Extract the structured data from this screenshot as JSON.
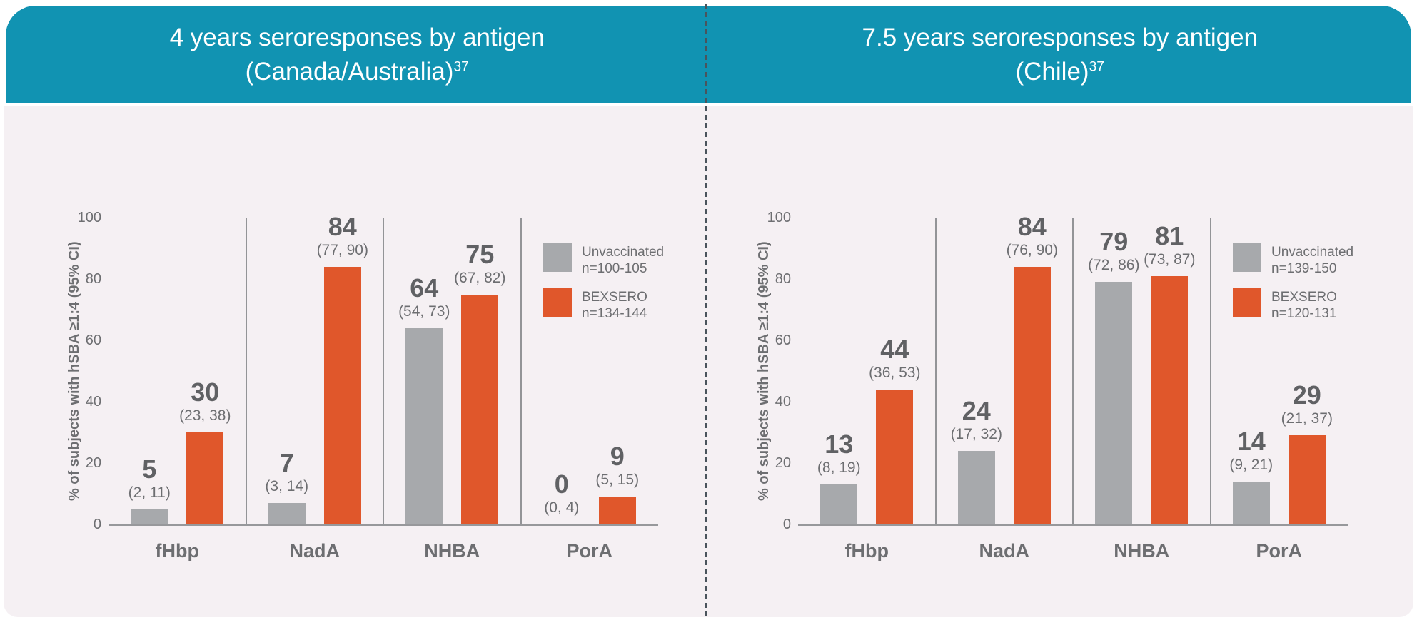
{
  "page": {
    "background": "#FFFFFF",
    "panel_background": "#F5F0F3",
    "header_background": "#1193B2",
    "divider_color": "#4A545C",
    "axis_color": "#97989B",
    "text_color": "#6D6E71"
  },
  "chart_data": [
    {
      "type": "bar",
      "title_line1": "4 years seroresponses by antigen",
      "title_line2": "(Canada/Australia)",
      "title_sup": "37",
      "ylabel": "% of subjects with hSBA ≥1:4 (95% CI)",
      "ylim": [
        0,
        100
      ],
      "yticks": [
        100,
        80,
        60,
        40,
        20,
        0
      ],
      "grid": "off",
      "legend_position": "top-right",
      "categories": [
        "fHbp",
        "NadA",
        "NHBA",
        "PorA"
      ],
      "series": [
        {
          "name": "Unvaccinated",
          "n_label": "n=100-105",
          "color": "#A7A9AC",
          "values": [
            5,
            7,
            64,
            0
          ],
          "ci_labels": [
            "(2, 11)",
            "(3, 14)",
            "(54, 73)",
            "(0, 4)"
          ]
        },
        {
          "name": "BEXSERO",
          "n_label": "n=134-144",
          "color": "#E0572B",
          "values": [
            30,
            84,
            75,
            9
          ],
          "ci_labels": [
            "(23, 38)",
            "(77, 90)",
            "(67, 82)",
            "(5, 15)"
          ]
        }
      ]
    },
    {
      "type": "bar",
      "title_line1": "7.5 years seroresponses by antigen",
      "title_line2": "(Chile)",
      "title_sup": "37",
      "ylabel": "% of subjects with hSBA ≥1:4 (95% CI)",
      "ylim": [
        0,
        100
      ],
      "yticks": [
        100,
        80,
        60,
        40,
        20,
        0
      ],
      "grid": "off",
      "legend_position": "top-right",
      "categories": [
        "fHbp",
        "NadA",
        "NHBA",
        "PorA"
      ],
      "series": [
        {
          "name": "Unvaccinated",
          "n_label": "n=139-150",
          "color": "#A7A9AC",
          "values": [
            13,
            24,
            79,
            14
          ],
          "ci_labels": [
            "(8, 19)",
            "(17, 32)",
            "(72, 86)",
            "(9, 21)"
          ]
        },
        {
          "name": "BEXSERO",
          "n_label": "n=120-131",
          "color": "#E0572B",
          "values": [
            44,
            84,
            81,
            29
          ],
          "ci_labels": [
            "(36, 53)",
            "(76, 90)",
            "(73, 87)",
            "(21, 37)"
          ]
        }
      ]
    }
  ]
}
